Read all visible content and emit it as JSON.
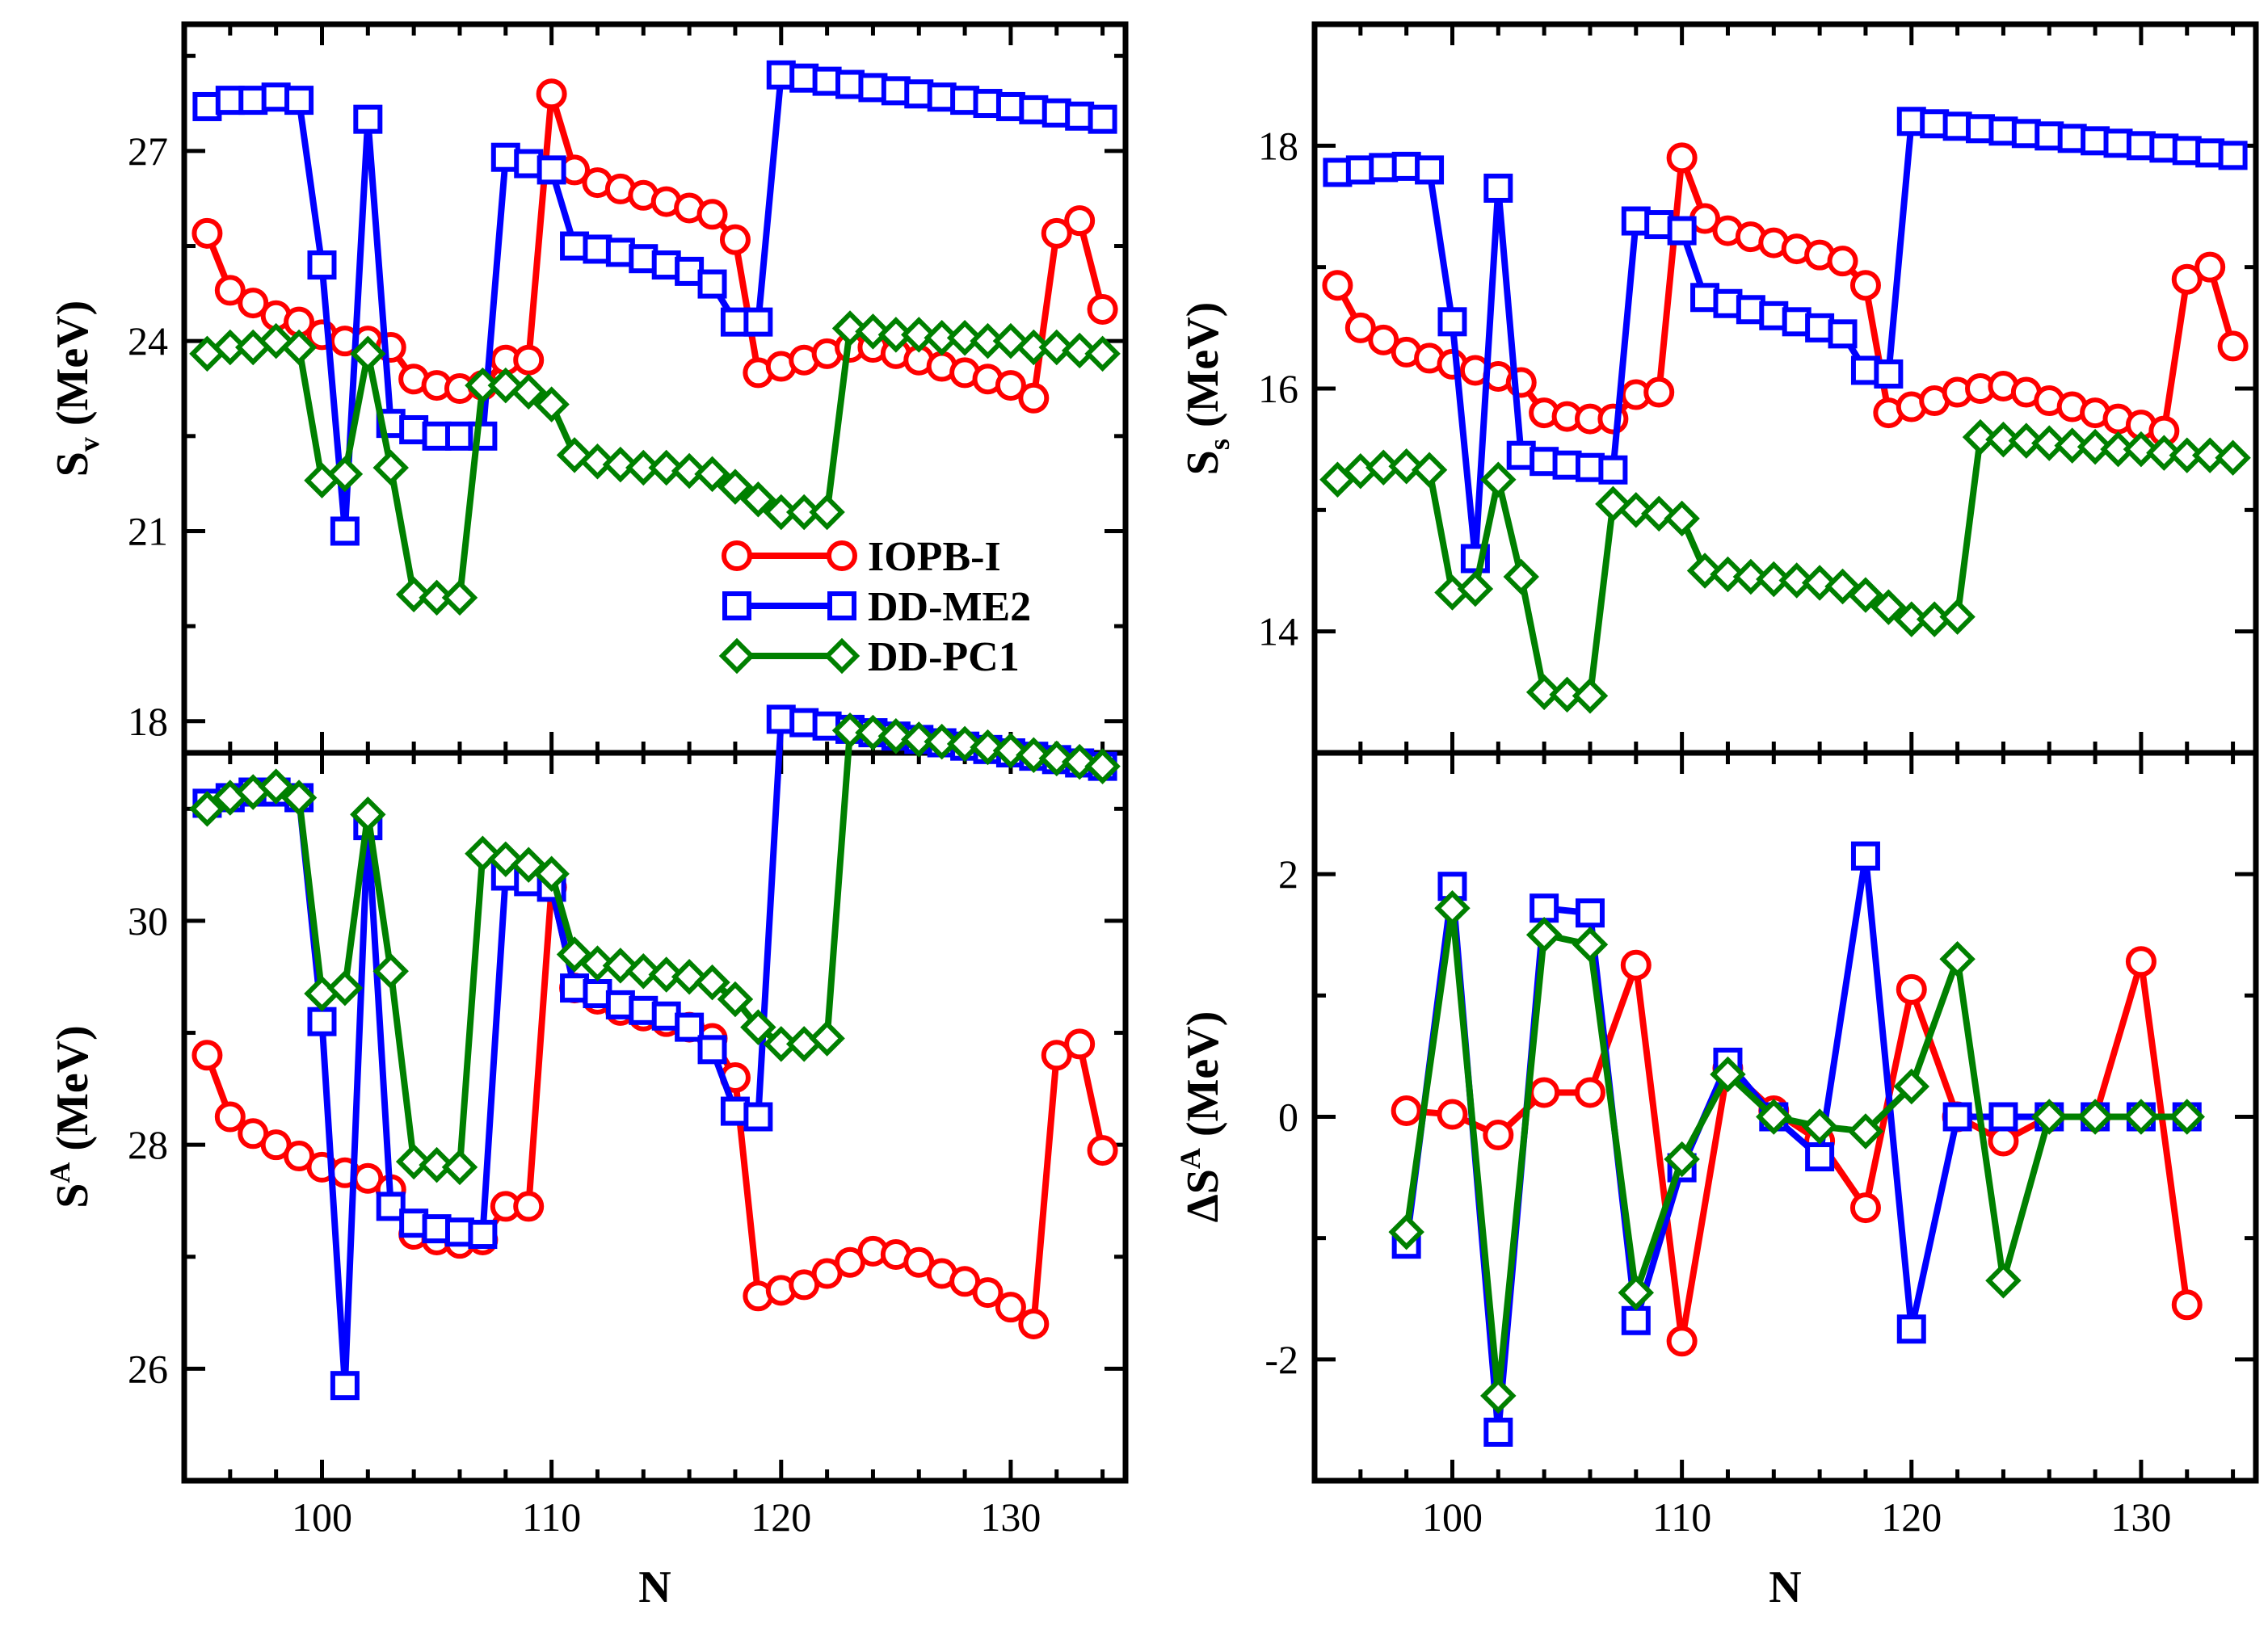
{
  "chart_data": [
    {
      "id": "Sv",
      "type": "line",
      "ylabel": {
        "main": "S",
        "sub": "v",
        "sup": "",
        "prefix": "",
        "unit": " (MeV)"
      },
      "xlabel": "",
      "xlim": [
        94,
        135
      ],
      "ylim": [
        17.5,
        29
      ],
      "xticks": [],
      "yticks": [
        18,
        21,
        24,
        27
      ],
      "legend": true,
      "legend_position": "middle-right",
      "series": [
        {
          "name": "IOPB-I",
          "x": [
            95,
            96,
            97,
            98,
            99,
            100,
            101,
            102,
            103,
            104,
            105,
            106,
            107,
            108,
            109,
            110,
            111,
            112,
            113,
            114,
            115,
            116,
            117,
            118,
            119,
            120,
            121,
            122,
            123,
            124,
            125,
            126,
            127,
            128,
            129,
            130,
            131,
            132,
            133,
            134
          ],
          "values": [
            25.7,
            24.8,
            24.6,
            24.4,
            24.3,
            24.1,
            24.0,
            24.0,
            23.9,
            23.4,
            23.3,
            23.25,
            23.3,
            23.7,
            23.7,
            27.9,
            26.7,
            26.5,
            26.4,
            26.3,
            26.2,
            26.1,
            26.0,
            25.6,
            23.5,
            23.6,
            23.7,
            23.8,
            23.9,
            23.9,
            23.8,
            23.7,
            23.6,
            23.5,
            23.4,
            23.3,
            23.1,
            25.7,
            25.9,
            24.5
          ]
        },
        {
          "name": "DD-ME2",
          "x": [
            95,
            96,
            97,
            98,
            99,
            100,
            101,
            102,
            103,
            104,
            105,
            106,
            107,
            108,
            109,
            110,
            111,
            112,
            113,
            114,
            115,
            116,
            117,
            118,
            119,
            120,
            121,
            122,
            123,
            124,
            125,
            126,
            127,
            128,
            129,
            130,
            131,
            132,
            133,
            134
          ],
          "values": [
            27.7,
            27.8,
            27.8,
            27.85,
            27.8,
            25.2,
            21.0,
            27.5,
            22.7,
            22.6,
            22.5,
            22.5,
            22.5,
            26.9,
            26.8,
            26.7,
            25.5,
            25.45,
            25.4,
            25.3,
            25.2,
            25.1,
            24.9,
            24.3,
            24.3,
            28.2,
            28.15,
            28.1,
            28.05,
            28.0,
            27.95,
            27.9,
            27.85,
            27.8,
            27.75,
            27.7,
            27.65,
            27.6,
            27.55,
            27.5
          ]
        },
        {
          "name": "DD-PC1",
          "x": [
            95,
            96,
            97,
            98,
            99,
            100,
            101,
            102,
            103,
            104,
            105,
            106,
            107,
            108,
            109,
            110,
            111,
            112,
            113,
            114,
            115,
            116,
            117,
            118,
            119,
            120,
            121,
            122,
            123,
            124,
            125,
            126,
            127,
            128,
            129,
            130,
            131,
            132,
            133,
            134
          ],
          "values": [
            23.8,
            23.9,
            23.9,
            24.0,
            23.9,
            21.8,
            21.9,
            23.8,
            22.0,
            20.0,
            19.95,
            19.95,
            23.3,
            23.3,
            23.2,
            23.0,
            22.2,
            22.1,
            22.05,
            22.0,
            22.0,
            21.95,
            21.9,
            21.7,
            21.5,
            21.3,
            21.3,
            21.3,
            24.2,
            24.15,
            24.1,
            24.1,
            24.05,
            24.05,
            24.0,
            24.0,
            23.9,
            23.9,
            23.85,
            23.8
          ]
        }
      ]
    },
    {
      "id": "Ss",
      "type": "line",
      "ylabel": {
        "main": "S",
        "sub": "s",
        "sup": "",
        "prefix": "",
        "unit": " (MeV)"
      },
      "xlabel": "",
      "xlim": [
        94,
        135
      ],
      "ylim": [
        13,
        19
      ],
      "xticks": [],
      "yticks": [
        14,
        16,
        18
      ],
      "legend": false,
      "series": [
        {
          "name": "IOPB-I",
          "x": [
            95,
            96,
            97,
            98,
            99,
            100,
            101,
            102,
            103,
            104,
            105,
            106,
            107,
            108,
            109,
            110,
            111,
            112,
            113,
            114,
            115,
            116,
            117,
            118,
            119,
            120,
            121,
            122,
            123,
            124,
            125,
            126,
            127,
            128,
            129,
            130,
            131,
            132,
            133,
            134
          ],
          "values": [
            16.85,
            16.5,
            16.4,
            16.3,
            16.25,
            16.2,
            16.15,
            16.1,
            16.05,
            15.8,
            15.77,
            15.75,
            15.75,
            15.95,
            15.97,
            17.9,
            17.4,
            17.3,
            17.25,
            17.2,
            17.15,
            17.1,
            17.05,
            16.85,
            15.8,
            15.85,
            15.9,
            15.97,
            16.0,
            16.02,
            15.97,
            15.9,
            15.85,
            15.8,
            15.75,
            15.7,
            15.65,
            16.9,
            17.0,
            16.35
          ]
        },
        {
          "name": "DD-ME2",
          "x": [
            95,
            96,
            97,
            98,
            99,
            100,
            101,
            102,
            103,
            104,
            105,
            106,
            107,
            108,
            109,
            110,
            111,
            112,
            113,
            114,
            115,
            116,
            117,
            118,
            119,
            120,
            121,
            122,
            123,
            124,
            125,
            126,
            127,
            128,
            129,
            130,
            131,
            132,
            133,
            134
          ],
          "values": [
            17.78,
            17.8,
            17.82,
            17.83,
            17.8,
            16.55,
            14.6,
            17.65,
            15.45,
            15.4,
            15.37,
            15.35,
            15.33,
            17.38,
            17.35,
            17.3,
            16.75,
            16.7,
            16.65,
            16.6,
            16.55,
            16.5,
            16.45,
            16.15,
            16.12,
            18.2,
            18.18,
            18.16,
            18.14,
            18.12,
            18.1,
            18.08,
            18.06,
            18.04,
            18.02,
            18.0,
            17.98,
            17.96,
            17.94,
            17.92
          ]
        },
        {
          "name": "DD-PC1",
          "x": [
            95,
            96,
            97,
            98,
            99,
            100,
            101,
            102,
            103,
            104,
            105,
            106,
            107,
            108,
            109,
            110,
            111,
            112,
            113,
            114,
            115,
            116,
            117,
            118,
            119,
            120,
            121,
            122,
            123,
            124,
            125,
            126,
            127,
            128,
            129,
            130,
            131,
            132,
            133,
            134
          ],
          "values": [
            15.25,
            15.32,
            15.35,
            15.36,
            15.33,
            14.32,
            14.35,
            15.25,
            14.45,
            13.5,
            13.48,
            13.47,
            15.05,
            15.0,
            14.97,
            14.93,
            14.5,
            14.47,
            14.45,
            14.43,
            14.42,
            14.4,
            14.37,
            14.3,
            14.2,
            14.1,
            14.1,
            14.12,
            15.6,
            15.58,
            15.57,
            15.55,
            15.53,
            15.52,
            15.5,
            15.5,
            15.47,
            15.45,
            15.45,
            15.43
          ]
        }
      ]
    },
    {
      "id": "SA",
      "type": "line",
      "ylabel": {
        "main": "S",
        "sub": "",
        "sup": "A",
        "prefix": "",
        "unit": " (MeV)"
      },
      "xlabel": "N",
      "xlim": [
        94,
        135
      ],
      "ylim": [
        25,
        31.5
      ],
      "xticks": [
        100,
        110,
        120,
        130
      ],
      "yticks": [
        26,
        28,
        30
      ],
      "legend": false,
      "series": [
        {
          "name": "IOPB-I",
          "x": [
            95,
            96,
            97,
            98,
            99,
            100,
            101,
            102,
            103,
            104,
            105,
            106,
            107,
            108,
            109,
            110,
            111,
            112,
            113,
            114,
            115,
            116,
            117,
            118,
            119,
            120,
            121,
            122,
            123,
            124,
            125,
            126,
            127,
            128,
            129,
            130,
            131,
            132,
            133,
            134
          ],
          "values": [
            28.8,
            28.25,
            28.1,
            28.0,
            27.9,
            27.8,
            27.75,
            27.7,
            27.6,
            27.2,
            27.15,
            27.12,
            27.15,
            27.45,
            27.45,
            30.3,
            29.4,
            29.3,
            29.2,
            29.15,
            29.1,
            29.05,
            28.95,
            28.6,
            26.65,
            26.7,
            26.75,
            26.85,
            26.95,
            27.05,
            27.02,
            26.95,
            26.85,
            26.78,
            26.68,
            26.55,
            26.4,
            28.8,
            28.9,
            27.95
          ]
        },
        {
          "name": "DD-ME2",
          "x": [
            95,
            96,
            97,
            98,
            99,
            100,
            101,
            102,
            103,
            104,
            105,
            106,
            107,
            108,
            109,
            110,
            111,
            112,
            113,
            114,
            115,
            116,
            117,
            118,
            119,
            120,
            121,
            122,
            123,
            124,
            125,
            126,
            127,
            128,
            129,
            130,
            131,
            132,
            133,
            134
          ],
          "values": [
            31.05,
            31.1,
            31.15,
            31.15,
            31.1,
            29.1,
            25.85,
            30.85,
            27.45,
            27.3,
            27.25,
            27.22,
            27.2,
            30.4,
            30.35,
            30.3,
            29.4,
            29.35,
            29.25,
            29.2,
            29.15,
            29.05,
            28.85,
            28.3,
            28.25,
            31.8,
            31.77,
            31.74,
            31.71,
            31.68,
            31.65,
            31.62,
            31.59,
            31.56,
            31.53,
            31.5,
            31.47,
            31.44,
            31.41,
            31.38
          ]
        },
        {
          "name": "DD-PC1",
          "x": [
            95,
            96,
            97,
            98,
            99,
            100,
            101,
            102,
            103,
            104,
            105,
            106,
            107,
            108,
            109,
            110,
            111,
            112,
            113,
            114,
            115,
            116,
            117,
            118,
            119,
            120,
            121,
            122,
            123,
            124,
            125,
            126,
            127,
            128,
            129,
            130,
            131,
            132,
            133,
            134
          ],
          "values": [
            31.0,
            31.1,
            31.15,
            31.2,
            31.1,
            29.35,
            29.4,
            30.95,
            29.55,
            27.85,
            27.82,
            27.8,
            30.6,
            30.55,
            30.5,
            30.42,
            29.7,
            29.62,
            29.6,
            29.55,
            29.52,
            29.5,
            29.45,
            29.3,
            29.05,
            28.9,
            28.9,
            28.95,
            31.7,
            31.68,
            31.65,
            31.62,
            31.6,
            31.58,
            31.55,
            31.52,
            31.48,
            31.45,
            31.42,
            31.38
          ]
        }
      ]
    },
    {
      "id": "dSA",
      "type": "line",
      "ylabel": {
        "main": "S",
        "sub": "",
        "sup": "A",
        "prefix": "Δ",
        "unit": " (MeV)"
      },
      "xlabel": "N",
      "xlim": [
        94,
        135
      ],
      "ylim": [
        -3,
        3
      ],
      "xticks": [
        100,
        110,
        120,
        130
      ],
      "yticks": [
        -2,
        0,
        2
      ],
      "legend": false,
      "series": [
        {
          "name": "IOPB-I",
          "x": [
            98,
            100,
            102,
            104,
            106,
            108,
            110,
            112,
            114,
            116,
            118,
            120,
            122,
            124,
            126,
            128,
            130,
            132
          ],
          "values": [
            0.05,
            0.02,
            -0.15,
            0.2,
            0.2,
            1.25,
            -1.85,
            0.4,
            0.05,
            -0.2,
            -0.75,
            1.05,
            0.0,
            -0.2,
            0.0,
            0.0,
            1.28,
            -1.55
          ]
        },
        {
          "name": "DD-ME2",
          "x": [
            98,
            100,
            102,
            104,
            106,
            108,
            110,
            112,
            114,
            116,
            118,
            120,
            122,
            124,
            126,
            128,
            130,
            132
          ],
          "values": [
            -1.05,
            1.9,
            -2.6,
            1.72,
            1.68,
            -1.68,
            -0.42,
            0.45,
            0.0,
            -0.33,
            2.15,
            -1.75,
            0.0,
            0.0,
            0.0,
            0.0,
            0.0,
            0.0
          ]
        },
        {
          "name": "DD-PC1",
          "x": [
            98,
            100,
            102,
            104,
            106,
            108,
            110,
            112,
            114,
            116,
            118,
            120,
            122,
            124,
            126,
            128,
            130,
            132
          ],
          "values": [
            -0.95,
            1.72,
            -2.3,
            1.5,
            1.42,
            -1.45,
            -0.35,
            0.35,
            0.0,
            -0.08,
            -0.12,
            0.25,
            1.3,
            -1.35,
            0.0,
            0.0,
            0.0,
            0.0
          ]
        }
      ]
    }
  ],
  "styles": {
    "IOPB-I": {
      "color": "#ff0000",
      "marker": "circle"
    },
    "DD-ME2": {
      "color": "#0000ff",
      "marker": "square"
    },
    "DD-PC1": {
      "color": "#008000",
      "marker": "diamond"
    }
  }
}
